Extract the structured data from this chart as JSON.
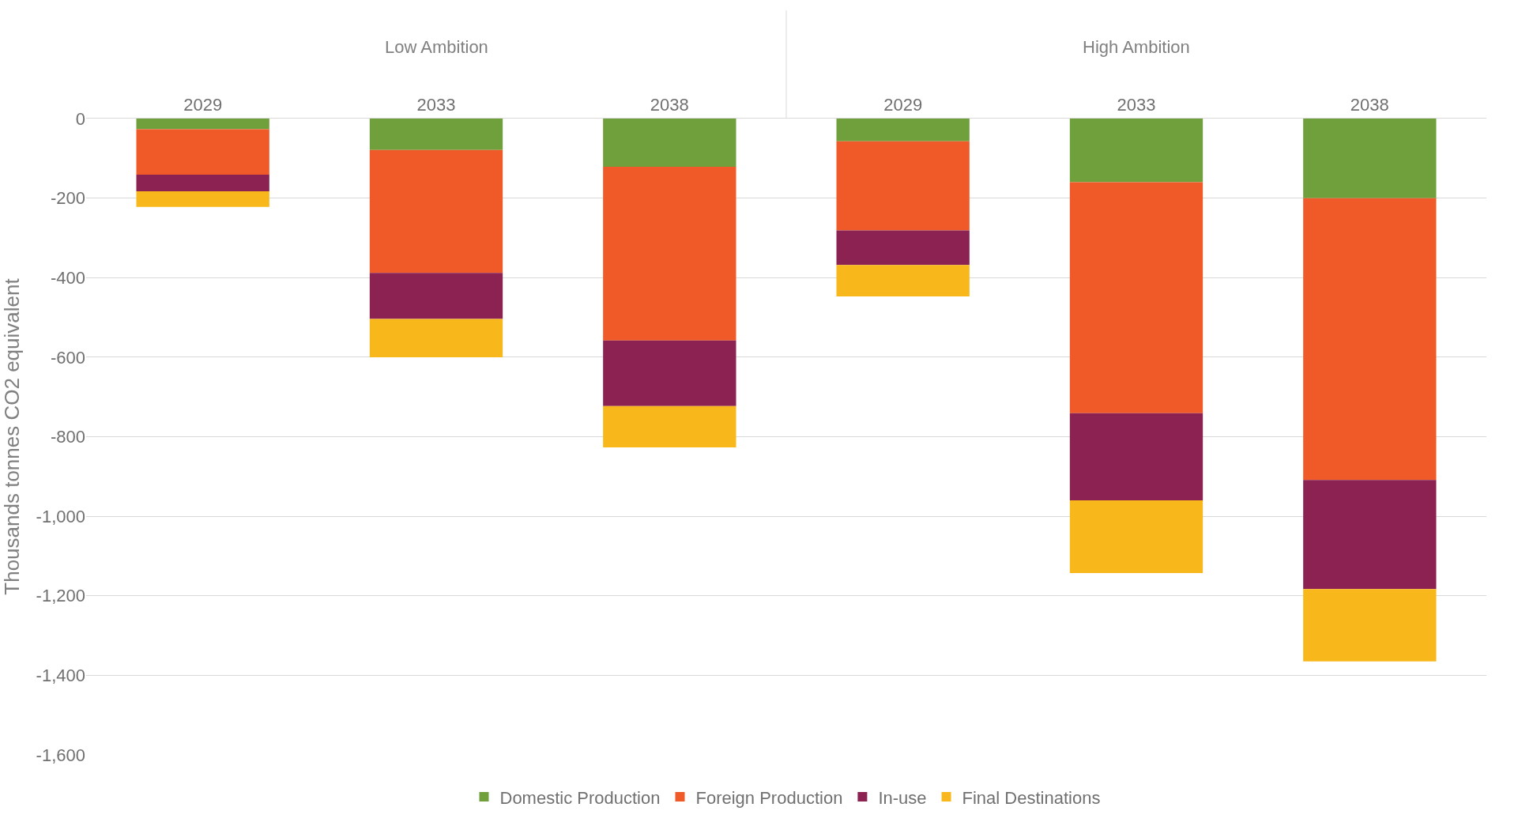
{
  "chart_data": {
    "type": "bar",
    "stacked": true,
    "ylabel": "Thousands tonnes CO2 equivalent",
    "categories": [
      "2029",
      "2033",
      "2038",
      "2029",
      "2033",
      "2038"
    ],
    "annotations": [
      "Low Ambition",
      "High Ambition"
    ],
    "series": [
      {
        "name": "Domestic Production",
        "color": "#70a03c",
        "values": [
          -27,
          -79,
          -121,
          -57,
          -160,
          -200
        ]
      },
      {
        "name": "Foreign Production",
        "color": "#f05a28",
        "values": [
          -114,
          -309,
          -437,
          -224,
          -581,
          -709
        ]
      },
      {
        "name": "In-use",
        "color": "#8b2252",
        "values": [
          -42,
          -116,
          -165,
          -87,
          -219,
          -274
        ]
      },
      {
        "name": "Final Destinations",
        "color": "#f8b71a",
        "values": [
          -39,
          -96,
          -104,
          -79,
          -183,
          -182
        ]
      }
    ],
    "ylim": [
      -1600,
      0
    ],
    "yticks": [
      0,
      -200,
      -400,
      -600,
      -800,
      {
        "value": -1000,
        "label": "-1,000"
      },
      {
        "value": -1200,
        "label": "-1,200"
      },
      {
        "value": -1400,
        "label": "-1,400"
      },
      {
        "value": -1600,
        "label": "-1,600"
      }
    ],
    "grid": "y",
    "legend": "bottom"
  }
}
